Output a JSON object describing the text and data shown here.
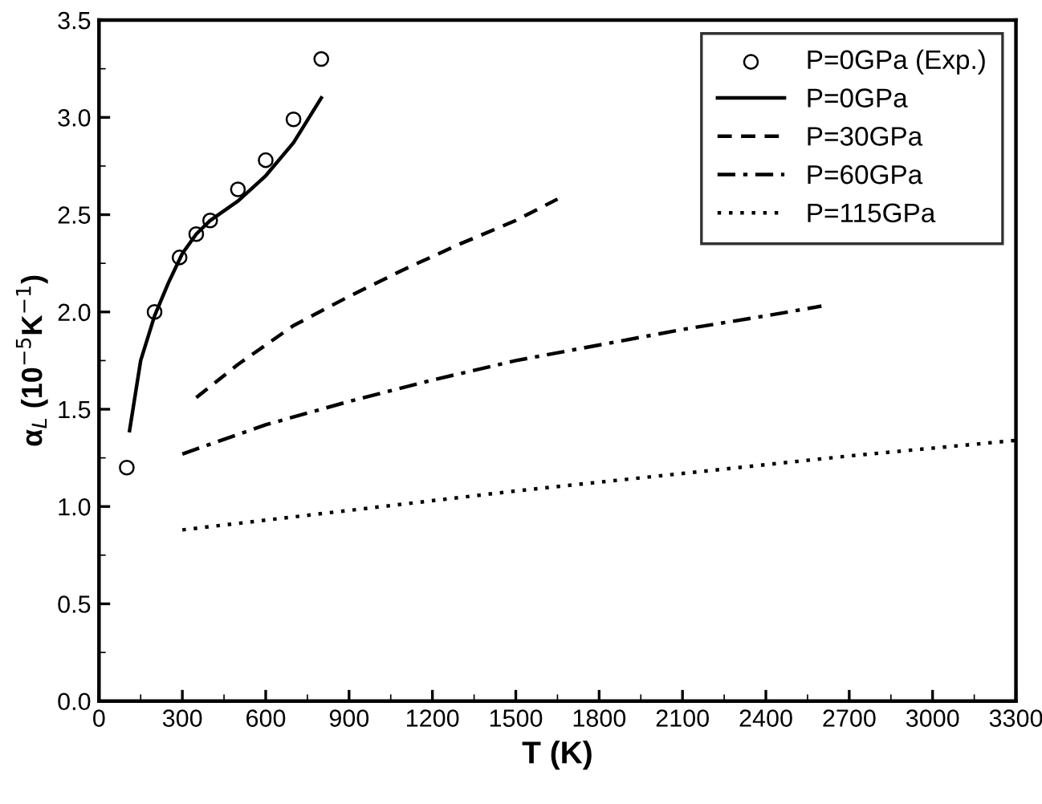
{
  "chart_data": {
    "type": "line",
    "xlabel": "T (K)",
    "ylabel": "α$_{L}$ (10$^{−5}$K$^{−1}$)",
    "xlim": [
      0,
      3300
    ],
    "xticks": [
      0,
      300,
      600,
      900,
      1200,
      1500,
      1800,
      2100,
      2400,
      2700,
      3000,
      3300
    ],
    "ylim": [
      0,
      3.5
    ],
    "yticks": [
      {
        "value": 0,
        "label": "0.0"
      },
      0.5,
      {
        "value": 1,
        "label": "1.0"
      },
      1.5,
      {
        "value": 2,
        "label": "2.0"
      },
      2.5,
      {
        "value": 3,
        "label": "3.0"
      },
      3.5
    ],
    "legend": "top right",
    "grid": false,
    "series": [
      {
        "name": "P=0GPa (Exp.)",
        "type": "scatter",
        "marker": "circle",
        "color": "#000000",
        "x": [
          100,
          200,
          290,
          350,
          400,
          500,
          600,
          700,
          800
        ],
        "values": [
          1.2,
          2.0,
          2.28,
          2.4,
          2.47,
          2.63,
          2.78,
          2.99,
          3.3
        ]
      },
      {
        "name": "P=0GPa",
        "line_style": "solid",
        "color": "#000000",
        "x": [
          110,
          150,
          200,
          250,
          300,
          350,
          400,
          500,
          600,
          700,
          800
        ],
        "values": [
          1.39,
          1.75,
          1.98,
          2.15,
          2.3,
          2.4,
          2.47,
          2.57,
          2.7,
          2.87,
          3.1
        ]
      },
      {
        "name": "P=30GPa",
        "line_style": "dashed",
        "color": "#000000",
        "x": [
          350,
          500,
          700,
          900,
          1100,
          1300,
          1500,
          1650
        ],
        "values": [
          1.56,
          1.73,
          1.93,
          2.08,
          2.22,
          2.35,
          2.47,
          2.58
        ]
      },
      {
        "name": "P=60GPa",
        "line_style": "dashdot",
        "color": "#000000",
        "x": [
          300,
          600,
          900,
          1200,
          1500,
          1800,
          2100,
          2400,
          2600
        ],
        "values": [
          1.27,
          1.42,
          1.54,
          1.65,
          1.75,
          1.83,
          1.91,
          1.98,
          2.03
        ]
      },
      {
        "name": "P=115GPa",
        "line_style": "dotted",
        "color": "#000000",
        "x": [
          300,
          900,
          1500,
          2100,
          2700,
          3300
        ],
        "values": [
          0.88,
          0.98,
          1.08,
          1.17,
          1.26,
          1.34
        ]
      }
    ]
  }
}
